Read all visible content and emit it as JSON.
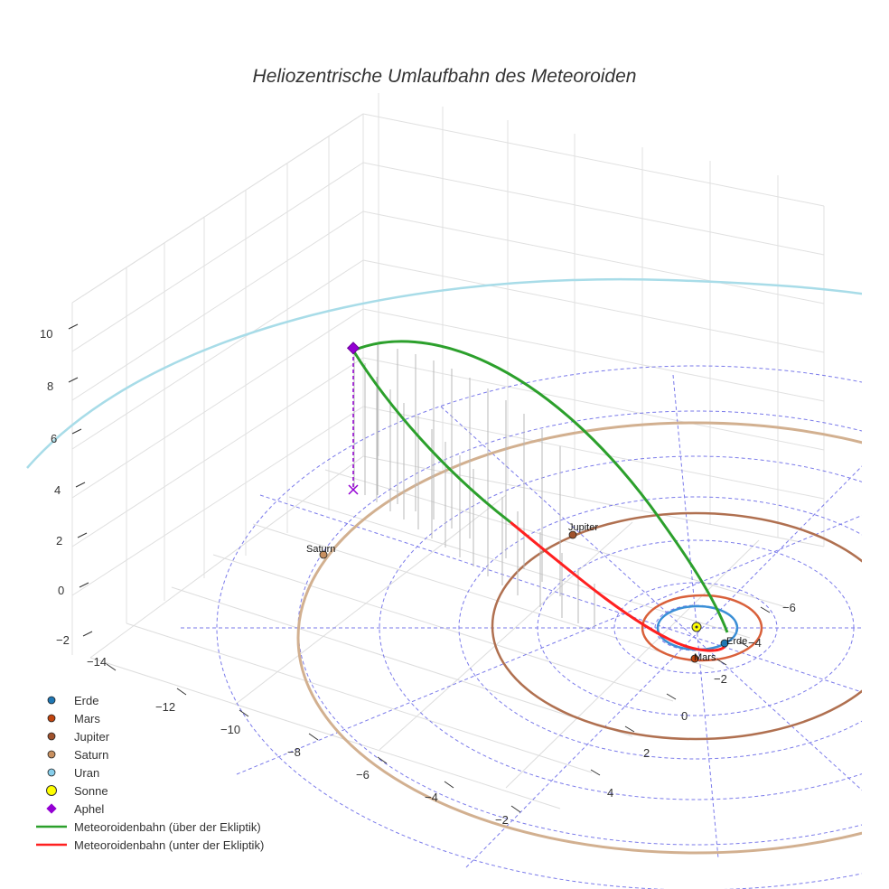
{
  "chart_data": {
    "type": "scatter",
    "title": "Heliozentrische Umlaufbahn des Meteoroiden",
    "z_ticks": [
      "10",
      "8",
      "6",
      "4",
      "2",
      "0",
      "−2"
    ],
    "y_ticks": [
      "−14",
      "−12",
      "−10",
      "−8",
      "−6",
      "−4",
      "−2"
    ],
    "x_ticks": [
      "−6",
      "−4",
      "−2",
      "0",
      "2",
      "4"
    ],
    "legend": [
      {
        "name": "Erde",
        "symbol": "dot",
        "color": "#1f77b4"
      },
      {
        "name": "Mars",
        "symbol": "dot",
        "color": "#c1440e"
      },
      {
        "name": "Jupiter",
        "symbol": "dot",
        "color": "#a0522d"
      },
      {
        "name": "Saturn",
        "symbol": "dot",
        "color": "#c89060"
      },
      {
        "name": "Uran",
        "symbol": "dot",
        "color": "#87ceeb"
      },
      {
        "name": "Sonne",
        "symbol": "bigdot",
        "color": "#ffff00"
      },
      {
        "name": "Aphel",
        "symbol": "diamond",
        "color": "#9400d3"
      },
      {
        "name": "Meteoroidenbahn (über der Ekliptik)",
        "symbol": "line",
        "color": "#2ca02c"
      },
      {
        "name": "Meteoroidenbahn (unter der Ekliptik)",
        "symbol": "line",
        "color": "#ff2020"
      }
    ],
    "planet_labels": [
      "Erde",
      "Mars",
      "Jupiter",
      "Saturn"
    ],
    "orbit_colors": {
      "Erde": "#3a8fd6",
      "Mars": "#d9603a",
      "Jupiter": "#b07050",
      "Saturn": "#d2b090",
      "Uran": "#a8dce8"
    },
    "aphel_z": 10
  }
}
